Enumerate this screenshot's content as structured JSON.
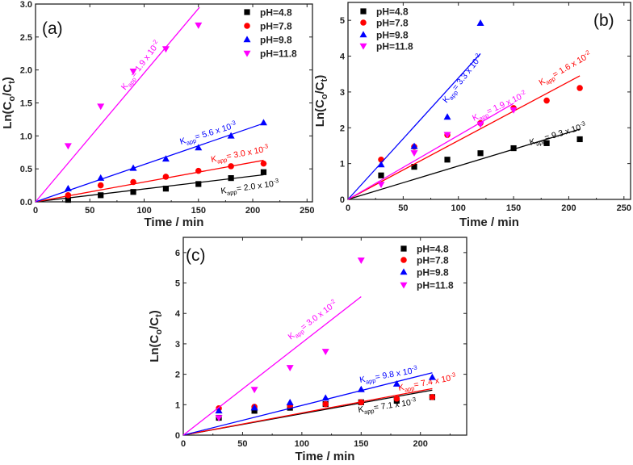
{
  "chart_data": [
    {
      "type": "scatter",
      "panel_label": "(a)",
      "xlabel": "Time / min",
      "ylabel": {
        "main": "Ln(C",
        "sub1": "o",
        "mid": "/C",
        "sub2": "t",
        "end": ")"
      },
      "xlim": [
        0,
        255
      ],
      "ylim": [
        0,
        3.0
      ],
      "xticks": [
        0,
        50,
        100,
        150,
        200,
        250
      ],
      "yticks": [
        0.0,
        0.5,
        1.0,
        1.5,
        2.0,
        2.5,
        3.0
      ],
      "ytick_decimals": 1,
      "legend_position": "top-right",
      "series": [
        {
          "name": "pH=4.8",
          "color": "#000000",
          "marker": "square",
          "x": [
            30,
            60,
            90,
            120,
            150,
            180,
            210
          ],
          "y": [
            0.03,
            0.1,
            0.15,
            0.2,
            0.27,
            0.36,
            0.45
          ],
          "fit_end": [
            210,
            0.41
          ],
          "annotation": {
            "k": "K",
            "sub": "app",
            "mid": "= 2.0 x 10",
            "sup": "-3"
          }
        },
        {
          "name": "pH=7.8",
          "color": "#ff0000",
          "marker": "circle",
          "x": [
            30,
            60,
            90,
            120,
            150,
            180,
            210
          ],
          "y": [
            0.1,
            0.25,
            0.3,
            0.38,
            0.47,
            0.54,
            0.58
          ],
          "fit_end": [
            210,
            0.63
          ],
          "annotation": {
            "k": "K",
            "sub": "app",
            "mid": "= 3.0 x 10",
            "sup": "-3"
          }
        },
        {
          "name": "pH=9.8",
          "color": "#0000ff",
          "marker": "triangle-up",
          "x": [
            30,
            60,
            90,
            120,
            150,
            180,
            210
          ],
          "y": [
            0.2,
            0.36,
            0.51,
            0.65,
            0.82,
            1.0,
            1.2
          ],
          "fit_end": [
            210,
            1.19
          ],
          "annotation": {
            "k": "K",
            "sub": "app",
            "mid": "= 5.6 x 10",
            "sup": "-3"
          }
        },
        {
          "name": "pH=11.8",
          "color": "#ff00ff",
          "marker": "triangle-down",
          "x": [
            30,
            60,
            90,
            120,
            150
          ],
          "y": [
            0.85,
            1.45,
            1.98,
            2.32,
            2.68
          ],
          "fit_end": [
            151,
            2.95
          ],
          "annotation": {
            "k": "K",
            "sub": "app",
            "mid": "= 1.9 x 10",
            "sup": "-2"
          }
        }
      ]
    },
    {
      "type": "scatter",
      "panel_label": "(b)",
      "xlabel": "Time / min",
      "ylabel": {
        "main": "Ln(C",
        "sub1": "o",
        "mid": "/C",
        "sub2": "t",
        "end": ")"
      },
      "xlim": [
        0,
        256
      ],
      "ylim": [
        0,
        5.5
      ],
      "xticks": [
        0,
        50,
        100,
        150,
        200,
        250
      ],
      "yticks": [
        0,
        1,
        2,
        3,
        4,
        5
      ],
      "ytick_decimals": 0,
      "legend_position": "top-left",
      "series": [
        {
          "name": "pH=4.8",
          "color": "#000000",
          "marker": "square",
          "x": [
            30,
            60,
            90,
            120,
            150,
            180,
            210
          ],
          "y": [
            0.67,
            0.91,
            1.11,
            1.29,
            1.43,
            1.57,
            1.68
          ],
          "fit_end": [
            210,
            1.96
          ],
          "annotation": {
            "k": "K",
            "sub": "app",
            "mid": "= 9.3 x 10",
            "sup": "-3"
          }
        },
        {
          "name": "pH=7.8",
          "color": "#ff0000",
          "marker": "circle",
          "x": [
            30,
            60,
            90,
            120,
            150,
            180,
            210
          ],
          "y": [
            1.11,
            1.47,
            1.8,
            2.13,
            2.55,
            2.76,
            3.11
          ],
          "fit_end": [
            210,
            3.45
          ],
          "annotation": {
            "k": "K",
            "sub": "app",
            "mid": "= 1.6 x 10",
            "sup": "-2"
          }
        },
        {
          "name": "pH=9.8",
          "color": "#0000ff",
          "marker": "triangle-up",
          "x": [
            30,
            60,
            90,
            120
          ],
          "y": [
            0.97,
            1.48,
            2.3,
            4.92
          ],
          "fit_end": [
            120,
            4.07
          ],
          "annotation": {
            "k": "K",
            "sub": "app",
            "mid": "= 3.3 x 10",
            "sup": "-2"
          }
        },
        {
          "name": "pH=11.8",
          "color": "#ff00ff",
          "marker": "triangle-down",
          "x": [
            30,
            60,
            90,
            120,
            150
          ],
          "y": [
            0.42,
            1.3,
            1.81,
            2.1,
            2.5
          ],
          "fit_end": [
            150,
            2.68
          ],
          "annotation": {
            "k": "K",
            "sub": "app",
            "mid": "= 1.9 x 10",
            "sup": "-2"
          }
        }
      ]
    },
    {
      "type": "scatter",
      "panel_label": "(c)",
      "xlabel": "Time / min",
      "ylabel": {
        "main": "Ln(C",
        "sub1": "o",
        "mid": "/C",
        "sub2": "t",
        "end": ")"
      },
      "xlim": [
        0,
        239
      ],
      "ylim": [
        0,
        6.5
      ],
      "xticks": [
        0,
        50,
        100,
        150,
        200
      ],
      "yticks": [
        0,
        1,
        2,
        3,
        4,
        5,
        6
      ],
      "ytick_decimals": 0,
      "legend_position": "top-right",
      "series": [
        {
          "name": "pH=4.8",
          "color": "#000000",
          "marker": "square",
          "x": [
            30,
            60,
            90,
            120,
            150,
            180,
            210
          ],
          "y": [
            0.57,
            0.8,
            0.9,
            1.02,
            1.08,
            1.13,
            1.25
          ],
          "fit_end": [
            210,
            1.48
          ],
          "annotation": {
            "k": "K",
            "sub": "app",
            "mid": "= 7.1 x 10",
            "sup": "-3"
          }
        },
        {
          "name": "pH=7.8",
          "color": "#ff0000",
          "marker": "circle",
          "x": [
            30,
            60,
            90,
            120,
            150,
            180,
            210
          ],
          "y": [
            0.88,
            0.93,
            0.97,
            1.02,
            1.08,
            1.2,
            1.25
          ],
          "fit_end": [
            210,
            1.53
          ],
          "annotation": {
            "k": "K",
            "sub": "app",
            "mid": "= 7.4 x 10",
            "sup": "-3"
          }
        },
        {
          "name": "pH=9.8",
          "color": "#0000ff",
          "marker": "triangle-up",
          "x": [
            30,
            60,
            90,
            120,
            150,
            180,
            210
          ],
          "y": [
            0.8,
            0.9,
            1.07,
            1.22,
            1.5,
            1.68,
            1.9
          ],
          "fit_end": [
            210,
            2.05
          ],
          "annotation": {
            "k": "K",
            "sub": "app",
            "mid": "= 9.8 x 10",
            "sup": "-3"
          }
        },
        {
          "name": "pH=11.8",
          "color": "#ff00ff",
          "marker": "triangle-down",
          "x": [
            30,
            60,
            90,
            120,
            150
          ],
          "y": [
            0.57,
            1.5,
            2.22,
            2.75,
            5.75
          ],
          "fit_end": [
            150,
            4.55
          ],
          "annotation": {
            "k": "K",
            "sub": "app",
            "mid": "= 3.0 x 10",
            "sup": "-2"
          }
        }
      ]
    }
  ]
}
